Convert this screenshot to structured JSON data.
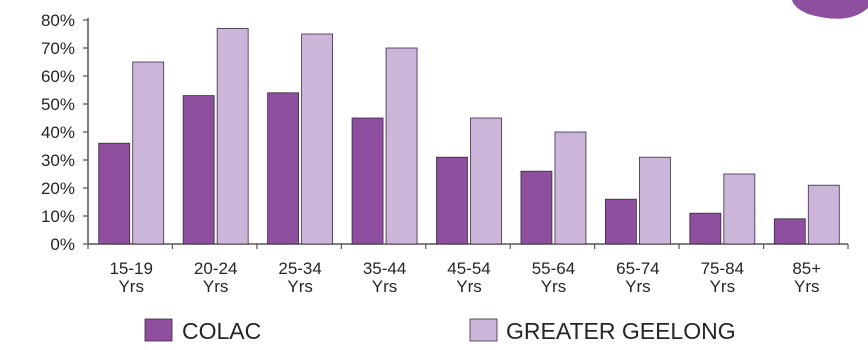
{
  "chart_data": {
    "type": "bar",
    "title": "",
    "xlabel": "",
    "ylabel": "",
    "ylim": [
      0,
      80
    ],
    "y_ticks": [
      "0%",
      "10%",
      "20%",
      "30%",
      "40%",
      "50%",
      "60%",
      "70%",
      "80%"
    ],
    "y_tick_values": [
      0,
      10,
      20,
      30,
      40,
      50,
      60,
      70,
      80
    ],
    "categories": [
      [
        "15-19",
        "Yrs"
      ],
      [
        "20-24",
        "Yrs"
      ],
      [
        "25-34",
        "Yrs"
      ],
      [
        "35-44",
        "Yrs"
      ],
      [
        "45-54",
        "Yrs"
      ],
      [
        "55-64",
        "Yrs"
      ],
      [
        "65-74",
        "Yrs"
      ],
      [
        "75-84",
        "Yrs"
      ],
      [
        "85+",
        "Yrs"
      ]
    ],
    "series": [
      {
        "name": "COLAC",
        "color": "#8e4f9f",
        "values": [
          36,
          53,
          54,
          45,
          31,
          26,
          16,
          11,
          9
        ]
      },
      {
        "name": "GREATER GEELONG",
        "color": "#cbb6d9",
        "values": [
          65,
          77,
          75,
          70,
          45,
          40,
          31,
          25,
          21
        ]
      }
    ],
    "legend_position": "bottom",
    "grid": false,
    "corner_decoration_color": "#8e4f9f"
  }
}
